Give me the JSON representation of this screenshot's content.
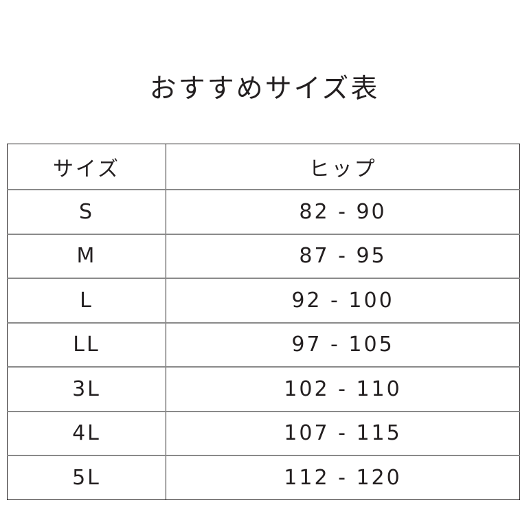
{
  "title": "おすすめサイズ表",
  "table": {
    "headers": [
      "サイズ",
      "ヒップ"
    ],
    "rows": [
      [
        "S",
        "82 - 90"
      ],
      [
        "M",
        "87 - 95"
      ],
      [
        "L",
        "92 - 100"
      ],
      [
        "LL",
        "97 - 105"
      ],
      [
        "3L",
        "102 - 110"
      ],
      [
        "4L",
        "107 - 115"
      ],
      [
        "5L",
        "112 - 120"
      ]
    ]
  }
}
